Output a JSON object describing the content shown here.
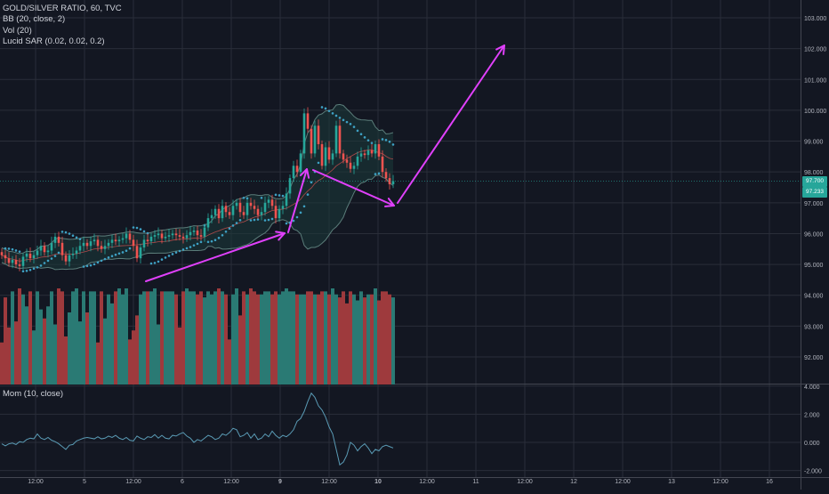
{
  "legend": {
    "symbol": "GOLD/SILVER RATIO, 60, TVC",
    "bb": "BB (20, close, 2)",
    "vol": "Vol (20)",
    "sar": "Lucid SAR (0.02, 0.02, 0.2)",
    "mom": "Mom (10, close)"
  },
  "price_tags": {
    "last": "97.700",
    "bb_lower": "97.233"
  },
  "colors": {
    "background": "#131722",
    "grid": "#2a2e39",
    "axis_text": "#b2b5be",
    "up": "#26a69a",
    "down": "#ef5350",
    "vol_up": "#2a7a74",
    "vol_down": "#9e3a3d",
    "bollinger": "#5b7d7a",
    "bollinger_fill": "#1b3a3a",
    "sar": "#3ea1c4",
    "momentum": "#5a9bb5",
    "annotation": "#e040fb"
  },
  "chart_data": [
    {
      "type": "candlestick",
      "title": "GOLD/SILVER RATIO, 60, TVC",
      "x_ticks": [
        "12:00",
        "5",
        "12:00",
        "6",
        "12:00",
        "9",
        "12:00",
        "10",
        "12:00",
        "11",
        "12:00",
        "12",
        "12:00",
        "13",
        "12:00",
        "16"
      ],
      "y_ticks": [
        "92.000",
        "93.000",
        "94.000",
        "95.000",
        "96.000",
        "97.000",
        "98.000",
        "99.000",
        "100.000",
        "101.000",
        "102.000",
        "103.000"
      ],
      "ylim": [
        91.2,
        103.2
      ],
      "close": [
        95.3,
        95.2,
        95.05,
        95.15,
        95.0,
        94.95,
        95.25,
        95.35,
        95.2,
        95.3,
        95.45,
        95.6,
        95.4,
        95.45,
        95.7,
        95.9,
        95.7,
        95.3,
        95.1,
        95.3,
        95.35,
        95.45,
        95.6,
        95.7,
        95.6,
        95.75,
        95.8,
        95.6,
        95.5,
        95.6,
        95.7,
        95.8,
        95.75,
        95.8,
        95.85,
        96.0,
        95.8,
        95.6,
        95.2,
        95.55,
        95.8,
        95.75,
        95.9,
        95.95,
        96.0,
        95.85,
        95.9,
        95.95,
        96.0,
        95.95,
        95.9,
        95.85,
        95.95,
        96.05,
        96.1,
        95.95,
        95.9,
        96.2,
        96.5,
        96.6,
        96.8,
        96.5,
        96.9,
        96.7,
        96.6,
        96.9,
        97.0,
        96.7,
        96.6,
        97.0,
        96.9,
        96.8,
        96.6,
        96.7,
        97.0,
        97.1,
        96.9,
        96.5,
        96.8,
        96.9,
        97.3,
        97.8,
        98.2,
        98.0,
        98.6,
        99.9,
        99.4,
        98.6,
        99.5,
        98.9,
        98.2,
        98.8,
        98.4,
        98.6,
        99.5,
        98.6,
        98.4,
        98.3,
        98.1,
        98.2,
        98.5,
        98.6,
        98.55,
        98.7,
        98.6,
        98.9,
        98.5,
        98.0,
        97.8,
        97.6,
        97.7
      ],
      "volume": [
        1.4,
        2.9,
        1.9,
        3.1,
        2.1,
        3.2,
        3.0,
        2.6,
        3.1,
        1.8,
        3.1,
        2.5,
        2.2,
        2.6,
        3.1,
        2.0,
        3.2,
        3.1,
        1.6,
        2.4,
        3.1,
        3.2,
        2.1,
        3.1,
        2.4,
        3.1,
        3.1,
        1.4,
        3.1,
        2.2,
        3.0,
        2.7,
        3.1,
        3.2,
        3.0,
        3.2,
        1.5,
        1.8,
        2.3,
        3.0,
        3.1,
        3.1,
        3.1,
        3.2,
        2.0,
        3.1,
        3.1,
        3.1,
        3.1,
        3.0,
        1.9,
        3.1,
        3.2,
        3.1,
        3.1,
        3.0,
        3.1,
        2.9,
        3.1,
        3.0,
        3.1,
        3.2,
        3.1,
        3.0,
        1.5,
        3.0,
        3.2,
        2.3,
        3.1,
        3.0,
        3.2,
        3.1,
        3.0,
        3.0,
        3.1,
        3.1,
        3.0,
        3.1,
        3.0,
        3.1,
        3.2,
        3.1,
        3.1,
        3.0,
        3.0,
        3.0,
        3.1,
        3.1,
        3.0,
        3.0,
        3.1,
        3.1,
        3.0,
        3.2,
        3.0,
        2.9,
        3.1,
        2.7,
        3.1,
        3.0,
        2.8,
        3.1,
        2.9,
        3.0,
        3.0,
        3.2,
        2.8,
        3.1,
        3.1,
        3.0,
        2.9
      ],
      "vol_ylim": [
        0,
        3.2
      ],
      "momentum": [
        -0.1,
        -0.25,
        -0.1,
        -0.05,
        -0.15,
        0.05,
        0.0,
        0.2,
        0.3,
        0.25,
        0.6,
        0.3,
        0.2,
        0.35,
        0.15,
        0.05,
        -0.1,
        -0.3,
        -0.5,
        -0.2,
        -0.15,
        0.1,
        0.2,
        0.3,
        0.35,
        0.3,
        0.25,
        0.4,
        0.25,
        0.3,
        0.45,
        0.35,
        0.5,
        0.3,
        0.2,
        0.35,
        0.15,
        0.1,
        0.45,
        0.3,
        0.2,
        0.4,
        0.35,
        0.55,
        0.3,
        0.5,
        0.3,
        0.25,
        0.5,
        0.45,
        0.6,
        0.7,
        0.45,
        0.3,
        0.0,
        0.2,
        0.1,
        0.3,
        0.5,
        0.4,
        0.2,
        0.3,
        0.6,
        0.5,
        0.7,
        1.0,
        0.9,
        0.4,
        0.5,
        0.7,
        0.3,
        0.6,
        0.2,
        0.3,
        0.6,
        0.4,
        0.8,
        0.5,
        0.3,
        0.5,
        0.4,
        0.6,
        0.9,
        1.5,
        1.7,
        2.2,
        2.9,
        3.5,
        3.2,
        2.6,
        2.3,
        1.8,
        1.1,
        0.6,
        -0.5,
        -1.6,
        -1.4,
        -0.9,
        0.0,
        -0.2,
        -0.6,
        -0.3,
        -0.1,
        -0.4,
        -0.8,
        -0.5,
        -0.6,
        -0.3,
        -0.2,
        -0.3,
        -0.4
      ],
      "mom_ticks": [
        "-2.000",
        "0.000",
        "2.000",
        "4.000"
      ],
      "mom_ylim": [
        -2.6,
        4.4
      ]
    }
  ]
}
